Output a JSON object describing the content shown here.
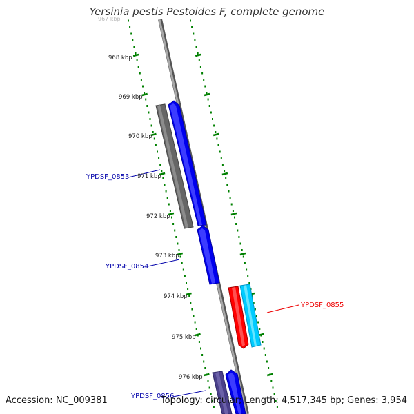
{
  "title": "Yersinia pestis Pestoides F, complete genome",
  "footer": {
    "accession": "Accession: NC_009381",
    "summary": "Topology: circular; Length: 4,517,345 bp; Genes: 3,954"
  },
  "ticks": [
    {
      "label": "968 kbp"
    },
    {
      "label": "969 kbp"
    },
    {
      "label": "970 kbp"
    },
    {
      "label": "971 kbp"
    },
    {
      "label": "972 kbp"
    },
    {
      "label": "973 kbp"
    },
    {
      "label": "974 kbp"
    },
    {
      "label": "975 kbp"
    },
    {
      "label": "976 kbp"
    }
  ],
  "genes": [
    {
      "label": "YPDSF_0853",
      "label_color": "#0000aa"
    },
    {
      "label": "YPDSF_0854",
      "label_color": "#0000aa"
    },
    {
      "label": "YPDSF_0855",
      "label_color": "#ee0000"
    },
    {
      "label": "YPDSF_0856",
      "label_color": "#0000aa"
    }
  ],
  "colors": {
    "backbone": "#8a8a8a",
    "tick_marks": "#008000",
    "cds_forward": "#0000ee",
    "cds_reverse": "#ff0000",
    "gene_forward": "#666666",
    "gene_reverse": "#00ccff",
    "gene_dark": "#4a3f8a"
  }
}
